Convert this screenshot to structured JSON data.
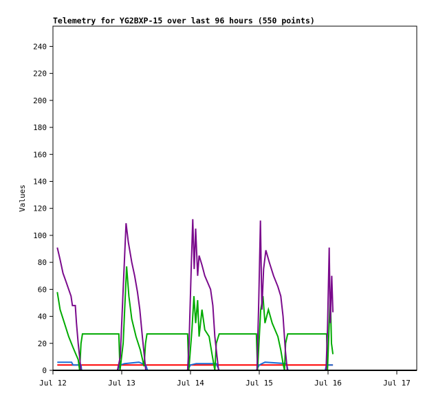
{
  "chart_data": {
    "type": "line",
    "title": "Telemetry for YG2BXP-15 over last 96 hours (550 points)",
    "xlabel": "",
    "ylabel": "Values",
    "x_unit": "hours since Jul 12 00:00",
    "xlim": [
      0,
      127
    ],
    "ylim": [
      0,
      255
    ],
    "yticks": [
      0,
      20,
      40,
      60,
      80,
      100,
      120,
      140,
      160,
      180,
      200,
      220,
      240
    ],
    "xticks": [
      {
        "h": 0,
        "label": "Jul 12"
      },
      {
        "h": 24,
        "label": "Jul 13"
      },
      {
        "h": 48,
        "label": "Jul 14"
      },
      {
        "h": 72,
        "label": "Jul 15"
      },
      {
        "h": 96,
        "label": "Jul 16"
      },
      {
        "h": 120,
        "label": "Jul 17"
      }
    ],
    "grid": false,
    "series": [
      {
        "name": "black",
        "color": "#000000",
        "points": [
          [
            1.5,
            0
          ],
          [
            97.7,
            0
          ]
        ]
      },
      {
        "name": "red",
        "color": "#ff0000",
        "points": [
          [
            1.5,
            4
          ],
          [
            97.7,
            4
          ]
        ]
      },
      {
        "name": "blue",
        "color": "#1c6fd6",
        "points": [
          [
            1.5,
            6
          ],
          [
            6.5,
            6
          ],
          [
            7,
            4
          ],
          [
            9.8,
            4
          ],
          [
            10,
            0
          ],
          [
            22.5,
            0
          ],
          [
            23.5,
            4
          ],
          [
            25,
            5
          ],
          [
            30,
            6
          ],
          [
            32.4,
            4
          ],
          [
            33,
            0
          ],
          [
            47,
            0
          ],
          [
            48,
            4
          ],
          [
            50,
            5
          ],
          [
            57,
            5
          ],
          [
            58,
            0
          ],
          [
            71,
            0
          ],
          [
            72,
            4
          ],
          [
            74,
            6
          ],
          [
            81.5,
            5
          ],
          [
            82,
            0
          ],
          [
            95,
            0
          ],
          [
            95.5,
            4
          ],
          [
            97.7,
            4
          ]
        ]
      },
      {
        "name": "green",
        "color": "#00aa00",
        "points": [
          [
            1.5,
            58
          ],
          [
            2.5,
            45
          ],
          [
            4,
            35
          ],
          [
            5.5,
            25
          ],
          [
            7,
            17
          ],
          [
            8,
            12
          ],
          [
            8.8,
            8
          ],
          [
            9.3,
            0
          ],
          [
            9.8,
            20
          ],
          [
            10.3,
            27
          ],
          [
            23,
            27
          ],
          [
            23.4,
            0
          ],
          [
            24.5,
            20
          ],
          [
            25.7,
            77
          ],
          [
            26.5,
            55
          ],
          [
            27.5,
            38
          ],
          [
            29,
            25
          ],
          [
            30.5,
            15
          ],
          [
            31.8,
            3
          ],
          [
            32.3,
            20
          ],
          [
            32.8,
            27
          ],
          [
            47,
            27
          ],
          [
            47.4,
            0
          ],
          [
            48.5,
            30
          ],
          [
            49.2,
            55
          ],
          [
            49.8,
            35
          ],
          [
            50.5,
            52
          ],
          [
            51,
            25
          ],
          [
            52,
            45
          ],
          [
            53,
            30
          ],
          [
            54.5,
            25
          ],
          [
            55.5,
            12
          ],
          [
            56.5,
            0
          ],
          [
            57,
            20
          ],
          [
            58,
            27
          ],
          [
            71,
            27
          ],
          [
            71.4,
            0
          ],
          [
            72.5,
            45
          ],
          [
            73.3,
            55
          ],
          [
            74,
            35
          ],
          [
            75.2,
            45
          ],
          [
            76.5,
            35
          ],
          [
            78.5,
            25
          ],
          [
            79.5,
            15
          ],
          [
            80.3,
            5
          ],
          [
            80.8,
            0
          ],
          [
            81.2,
            20
          ],
          [
            81.9,
            27
          ],
          [
            95.5,
            27
          ],
          [
            95.8,
            0
          ],
          [
            96.8,
            57
          ],
          [
            97.2,
            20
          ],
          [
            97.7,
            12
          ]
        ]
      },
      {
        "name": "purple",
        "color": "#7a0a8c",
        "points": [
          [
            1.5,
            91
          ],
          [
            2.5,
            82
          ],
          [
            3.5,
            72
          ],
          [
            4.5,
            66
          ],
          [
            5.5,
            60
          ],
          [
            6.3,
            55
          ],
          [
            6.8,
            48
          ],
          [
            7.8,
            48
          ],
          [
            8.2,
            35
          ],
          [
            8.8,
            20
          ],
          [
            9.8,
            0
          ],
          [
            22.5,
            0
          ],
          [
            23.5,
            10
          ],
          [
            24.5,
            60
          ],
          [
            25.5,
            109
          ],
          [
            26.3,
            95
          ],
          [
            27.5,
            80
          ],
          [
            28.5,
            70
          ],
          [
            29.5,
            58
          ],
          [
            30.3,
            45
          ],
          [
            31.2,
            25
          ],
          [
            32.4,
            0
          ],
          [
            47,
            0
          ],
          [
            47.5,
            20
          ],
          [
            48.3,
            80
          ],
          [
            48.8,
            112
          ],
          [
            49.3,
            75
          ],
          [
            49.8,
            105
          ],
          [
            50.5,
            70
          ],
          [
            51,
            85
          ],
          [
            52,
            78
          ],
          [
            53,
            70
          ],
          [
            54,
            65
          ],
          [
            55,
            60
          ],
          [
            55.8,
            48
          ],
          [
            56.5,
            25
          ],
          [
            57.8,
            0
          ],
          [
            71.2,
            0
          ],
          [
            71.8,
            50
          ],
          [
            72.4,
            111
          ],
          [
            72.9,
            45
          ],
          [
            73.5,
            75
          ],
          [
            74.3,
            89
          ],
          [
            75.5,
            80
          ],
          [
            77,
            70
          ],
          [
            78.5,
            62
          ],
          [
            79.5,
            55
          ],
          [
            80.3,
            40
          ],
          [
            81.1,
            15
          ],
          [
            81.8,
            0
          ],
          [
            95.3,
            0
          ],
          [
            95.8,
            30
          ],
          [
            96.4,
            91
          ],
          [
            96.8,
            35
          ],
          [
            97.3,
            70
          ],
          [
            97.7,
            43
          ]
        ]
      }
    ]
  }
}
